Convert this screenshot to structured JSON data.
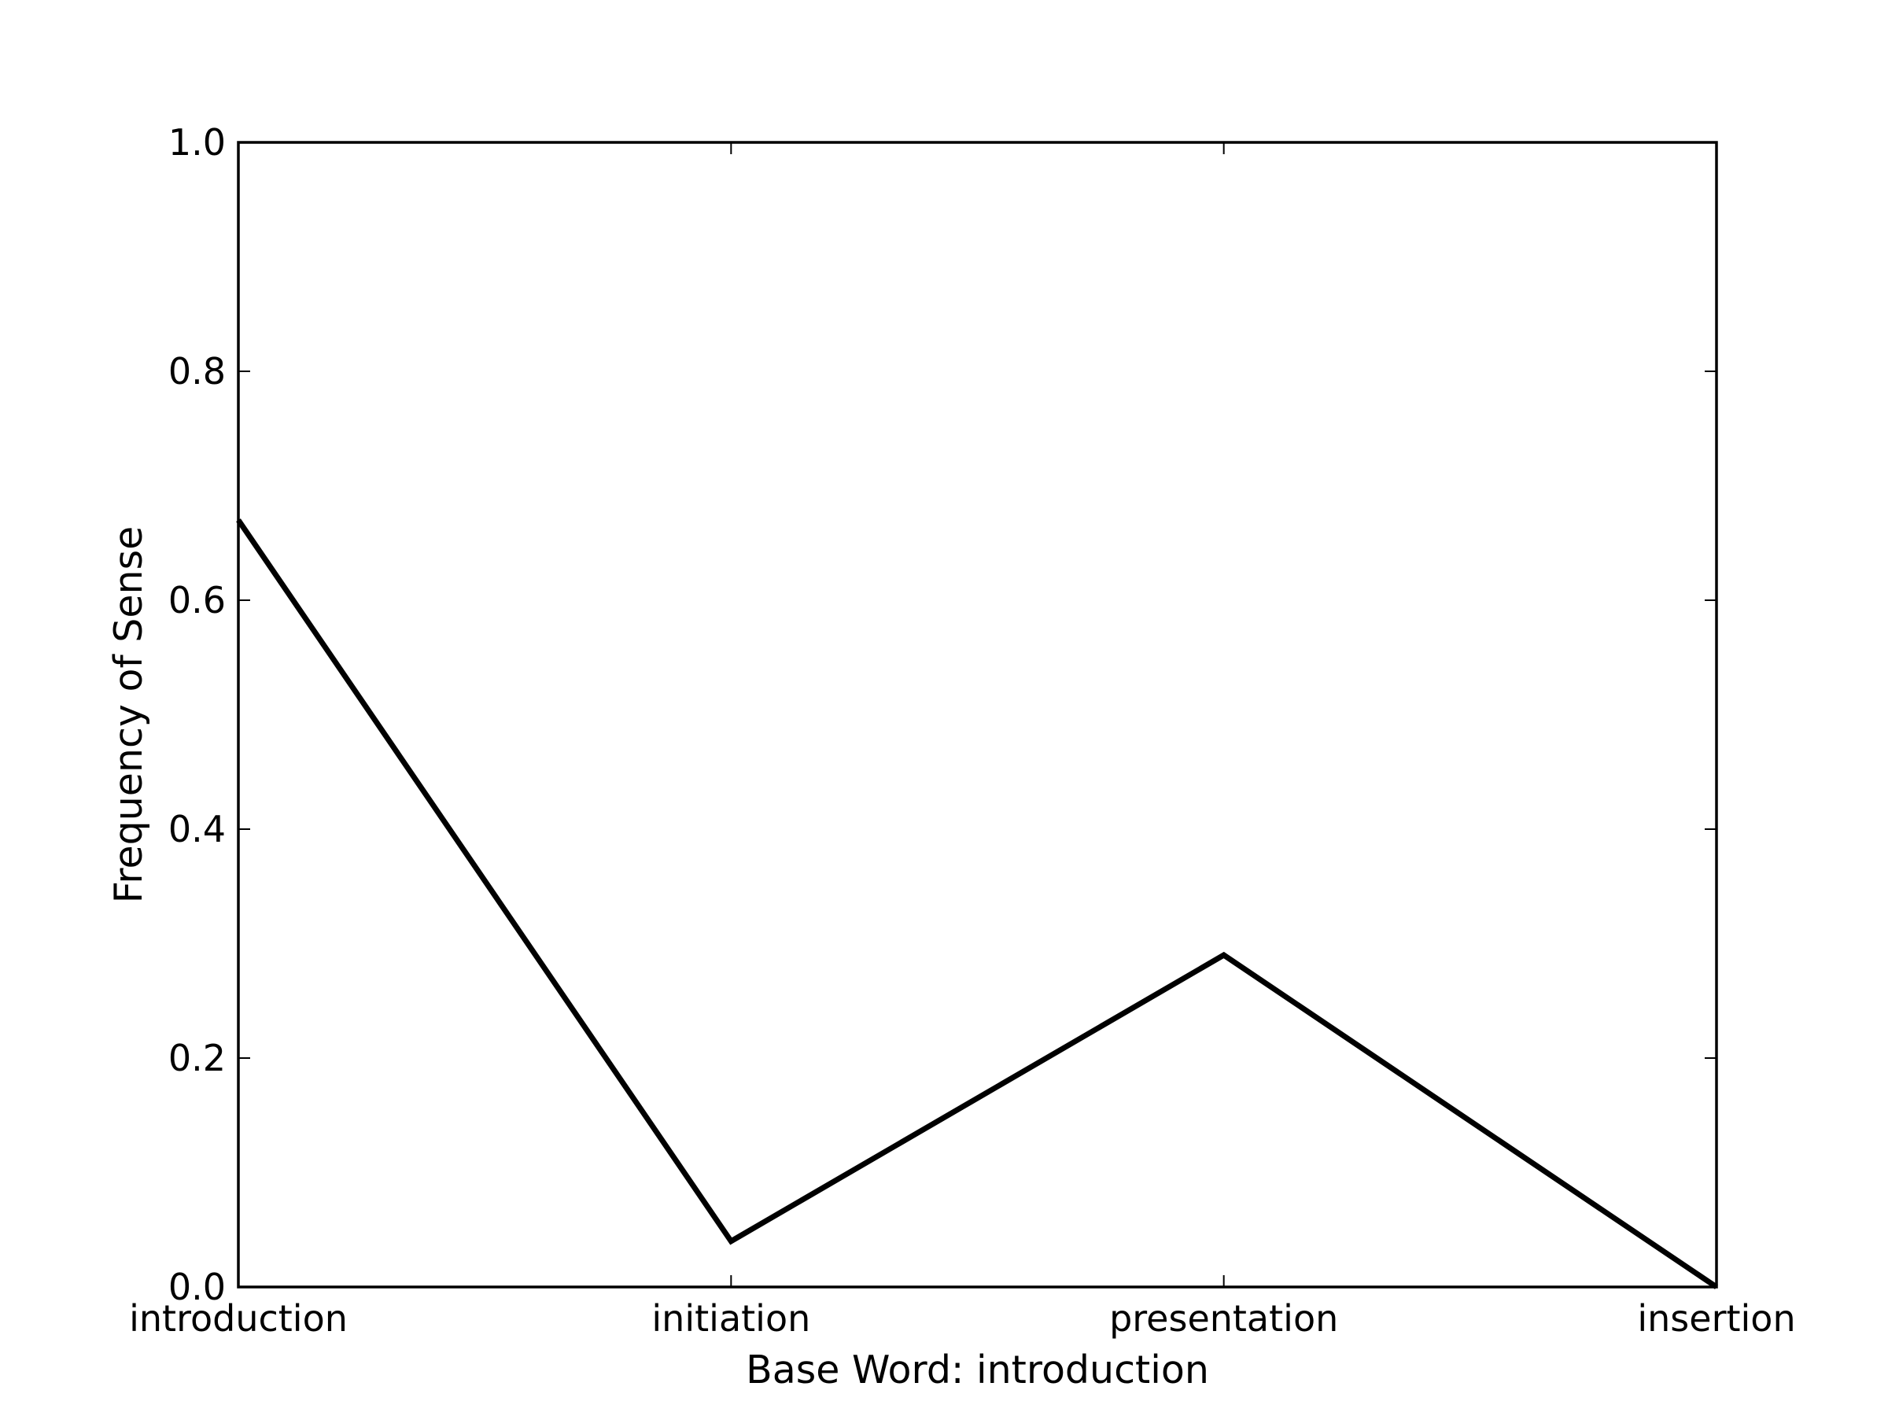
{
  "chart_data": {
    "type": "line",
    "categories": [
      "introduction",
      "initiation",
      "presentation",
      "insertion"
    ],
    "series": [
      {
        "values": [
          0.67,
          0.04,
          0.29,
          0.0
        ]
      }
    ],
    "title": "",
    "xlabel": "Base Word: introduction",
    "ylabel": "Frequency of Sense",
    "ylim": [
      0.0,
      1.0
    ],
    "yticks": [
      0.0,
      0.2,
      0.4,
      0.6,
      0.8,
      1.0
    ],
    "ytick_labels": [
      "0.0",
      "0.2",
      "0.4",
      "0.6",
      "0.8",
      "1.0"
    ],
    "grid": false,
    "legend": "none",
    "line_color": "#000000",
    "frame_color": "#000000"
  }
}
